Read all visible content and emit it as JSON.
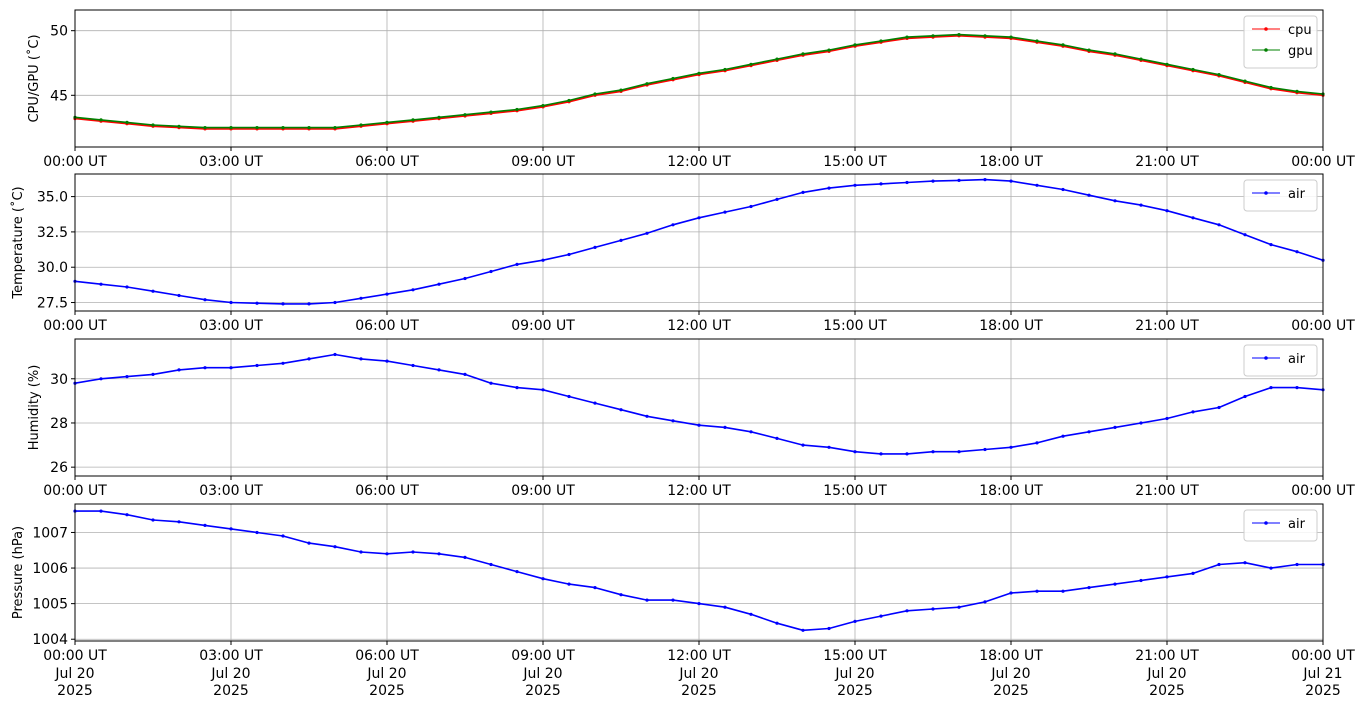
{
  "chart_data": [
    {
      "type": "line",
      "ylabel": "CPU/GPU (˚C)",
      "ylim": [
        41.0,
        51.6
      ],
      "yticks": [
        45,
        50
      ],
      "xlim": [
        0,
        24
      ],
      "xticks": [
        0,
        3,
        6,
        9,
        12,
        15,
        18,
        21,
        24
      ],
      "xtick_labels": [
        "00:00 UT",
        "03:00 UT",
        "06:00 UT",
        "09:00 UT",
        "12:00 UT",
        "15:00 UT",
        "18:00 UT",
        "21:00 UT",
        "00:00 UT"
      ],
      "grid": true,
      "legend_position": "top-right",
      "series": [
        {
          "name": "cpu",
          "color": "#ff0000",
          "x": [
            0,
            0.5,
            1,
            1.5,
            2,
            2.5,
            3,
            3.5,
            4,
            4.5,
            5,
            5.5,
            6,
            6.5,
            7,
            7.5,
            8,
            8.5,
            9,
            9.5,
            10,
            10.5,
            11,
            11.5,
            12,
            12.5,
            13,
            13.5,
            14,
            14.5,
            15,
            15.5,
            16,
            16.5,
            17,
            17.5,
            18,
            18.5,
            19,
            19.5,
            20,
            20.5,
            21,
            21.5,
            22,
            22.5,
            23,
            23.5,
            24
          ],
          "values": [
            43.2,
            43.0,
            42.8,
            42.6,
            42.5,
            42.4,
            42.4,
            42.4,
            42.4,
            42.4,
            42.4,
            42.6,
            42.8,
            43.0,
            43.2,
            43.4,
            43.6,
            43.8,
            44.1,
            44.5,
            45.0,
            45.3,
            45.8,
            46.2,
            46.6,
            46.9,
            47.3,
            47.7,
            48.1,
            48.4,
            48.8,
            49.1,
            49.4,
            49.5,
            49.6,
            49.5,
            49.4,
            49.1,
            48.8,
            48.4,
            48.1,
            47.7,
            47.3,
            46.9,
            46.5,
            46.0,
            45.5,
            45.2,
            45.0
          ]
        },
        {
          "name": "gpu",
          "color": "#008000",
          "x": [
            0,
            0.5,
            1,
            1.5,
            2,
            2.5,
            3,
            3.5,
            4,
            4.5,
            5,
            5.5,
            6,
            6.5,
            7,
            7.5,
            8,
            8.5,
            9,
            9.5,
            10,
            10.5,
            11,
            11.5,
            12,
            12.5,
            13,
            13.5,
            14,
            14.5,
            15,
            15.5,
            16,
            16.5,
            17,
            17.5,
            18,
            18.5,
            19,
            19.5,
            20,
            20.5,
            21,
            21.5,
            22,
            22.5,
            23,
            23.5,
            24
          ],
          "values": [
            43.3,
            43.1,
            42.9,
            42.7,
            42.6,
            42.5,
            42.5,
            42.5,
            42.5,
            42.5,
            42.5,
            42.7,
            42.9,
            43.1,
            43.3,
            43.5,
            43.7,
            43.9,
            44.2,
            44.6,
            45.1,
            45.4,
            45.9,
            46.3,
            46.7,
            47.0,
            47.4,
            47.8,
            48.2,
            48.5,
            48.9,
            49.2,
            49.5,
            49.6,
            49.7,
            49.6,
            49.5,
            49.2,
            48.9,
            48.5,
            48.2,
            47.8,
            47.4,
            47.0,
            46.6,
            46.1,
            45.6,
            45.3,
            45.1
          ]
        }
      ]
    },
    {
      "type": "line",
      "ylabel": "Temperature (˚C)",
      "ylim": [
        26.9,
        36.6
      ],
      "yticks": [
        27.5,
        30.0,
        32.5,
        35.0
      ],
      "ytick_labels": [
        "27.5",
        "30.0",
        "32.5",
        "35.0"
      ],
      "xlim": [
        0,
        24
      ],
      "xticks": [
        0,
        3,
        6,
        9,
        12,
        15,
        18,
        21,
        24
      ],
      "xtick_labels": [
        "00:00 UT",
        "03:00 UT",
        "06:00 UT",
        "09:00 UT",
        "12:00 UT",
        "15:00 UT",
        "18:00 UT",
        "21:00 UT",
        "00:00 UT"
      ],
      "grid": true,
      "legend_position": "top-right",
      "series": [
        {
          "name": "air",
          "color": "#0000ff",
          "x": [
            0,
            0.5,
            1,
            1.5,
            2,
            2.5,
            3,
            3.5,
            4,
            4.5,
            5,
            5.5,
            6,
            6.5,
            7,
            7.5,
            8,
            8.5,
            9,
            9.5,
            10,
            10.5,
            11,
            11.5,
            12,
            12.5,
            13,
            13.5,
            14,
            14.5,
            15,
            15.5,
            16,
            16.5,
            17,
            17.5,
            18,
            18.5,
            19,
            19.5,
            20,
            20.5,
            21,
            21.5,
            22,
            22.5,
            23,
            23.5,
            24
          ],
          "values": [
            29.0,
            28.8,
            28.6,
            28.3,
            28.0,
            27.7,
            27.5,
            27.45,
            27.4,
            27.4,
            27.5,
            27.8,
            28.1,
            28.4,
            28.8,
            29.2,
            29.7,
            30.2,
            30.5,
            30.9,
            31.4,
            31.9,
            32.4,
            33.0,
            33.5,
            33.9,
            34.3,
            34.8,
            35.3,
            35.6,
            35.8,
            35.9,
            36.0,
            36.1,
            36.15,
            36.2,
            36.1,
            35.8,
            35.5,
            35.1,
            34.7,
            34.4,
            34.0,
            33.5,
            33.0,
            32.3,
            31.6,
            31.1,
            30.5
          ]
        }
      ]
    },
    {
      "type": "line",
      "ylabel": "Humidity (%)",
      "ylim": [
        25.6,
        31.8
      ],
      "yticks": [
        26,
        28,
        30
      ],
      "xlim": [
        0,
        24
      ],
      "xticks": [
        0,
        3,
        6,
        9,
        12,
        15,
        18,
        21,
        24
      ],
      "xtick_labels": [
        "00:00 UT",
        "03:00 UT",
        "06:00 UT",
        "09:00 UT",
        "12:00 UT",
        "15:00 UT",
        "18:00 UT",
        "21:00 UT",
        "00:00 UT"
      ],
      "grid": true,
      "legend_position": "top-right",
      "series": [
        {
          "name": "air",
          "color": "#0000ff",
          "x": [
            0,
            0.5,
            1,
            1.5,
            2,
            2.5,
            3,
            3.5,
            4,
            4.5,
            5,
            5.5,
            6,
            6.5,
            7,
            7.5,
            8,
            8.5,
            9,
            9.5,
            10,
            10.5,
            11,
            11.5,
            12,
            12.5,
            13,
            13.5,
            14,
            14.5,
            15,
            15.5,
            16,
            16.5,
            17,
            17.5,
            18,
            18.5,
            19,
            19.5,
            20,
            20.5,
            21,
            21.5,
            22,
            22.5,
            23,
            23.5,
            24
          ],
          "values": [
            29.8,
            30.0,
            30.1,
            30.2,
            30.4,
            30.5,
            30.5,
            30.6,
            30.7,
            30.9,
            31.1,
            30.9,
            30.8,
            30.6,
            30.4,
            30.2,
            29.8,
            29.6,
            29.5,
            29.2,
            28.9,
            28.6,
            28.3,
            28.1,
            27.9,
            27.8,
            27.6,
            27.3,
            27.0,
            26.9,
            26.7,
            26.6,
            26.6,
            26.7,
            26.7,
            26.8,
            26.9,
            27.1,
            27.4,
            27.6,
            27.8,
            28.0,
            28.2,
            28.5,
            28.7,
            29.2,
            29.6,
            29.6,
            29.5
          ]
        }
      ]
    },
    {
      "type": "line",
      "ylabel": "Pressure (hPa)",
      "ylim": [
        1003.95,
        1007.8
      ],
      "yticks": [
        1004,
        1005,
        1006,
        1007
      ],
      "xlim": [
        0,
        24
      ],
      "xticks": [
        0,
        3,
        6,
        9,
        12,
        15,
        18,
        21,
        24
      ],
      "xtick_labels": [
        "00:00 UT",
        "03:00 UT",
        "06:00 UT",
        "09:00 UT",
        "12:00 UT",
        "15:00 UT",
        "18:00 UT",
        "21:00 UT",
        "00:00 UT"
      ],
      "xtick_sublabels": [
        [
          "Jul 20",
          "2025"
        ],
        [
          "Jul 20",
          "2025"
        ],
        [
          "Jul 20",
          "2025"
        ],
        [
          "Jul 20",
          "2025"
        ],
        [
          "Jul 20",
          "2025"
        ],
        [
          "Jul 20",
          "2025"
        ],
        [
          "Jul 20",
          "2025"
        ],
        [
          "Jul 20",
          "2025"
        ],
        [
          "Jul 21",
          "2025"
        ]
      ],
      "grid": true,
      "legend_position": "top-right",
      "series": [
        {
          "name": "air",
          "color": "#0000ff",
          "x": [
            0,
            0.5,
            1,
            1.5,
            2,
            2.5,
            3,
            3.5,
            4,
            4.5,
            5,
            5.5,
            6,
            6.5,
            7,
            7.5,
            8,
            8.5,
            9,
            9.5,
            10,
            10.5,
            11,
            11.5,
            12,
            12.5,
            13,
            13.5,
            14,
            14.5,
            15,
            15.5,
            16,
            16.5,
            17,
            17.5,
            18,
            18.5,
            19,
            19.5,
            20,
            20.5,
            21,
            21.5,
            22,
            22.5,
            23,
            23.5,
            24
          ],
          "values": [
            1007.6,
            1007.6,
            1007.5,
            1007.35,
            1007.3,
            1007.2,
            1007.1,
            1007.0,
            1006.9,
            1006.7,
            1006.6,
            1006.45,
            1006.4,
            1006.45,
            1006.4,
            1006.3,
            1006.1,
            1005.9,
            1005.7,
            1005.55,
            1005.45,
            1005.25,
            1005.1,
            1005.1,
            1005.0,
            1004.9,
            1004.7,
            1004.45,
            1004.25,
            1004.3,
            1004.5,
            1004.65,
            1004.8,
            1004.85,
            1004.9,
            1005.05,
            1005.3,
            1005.35,
            1005.35,
            1005.45,
            1005.55,
            1005.65,
            1005.75,
            1005.85,
            1006.1,
            1006.15,
            1006.0,
            1006.1,
            1006.1
          ]
        }
      ]
    }
  ]
}
